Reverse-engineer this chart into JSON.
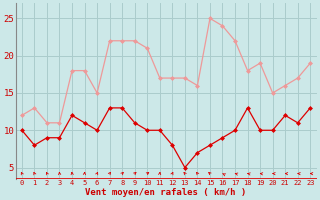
{
  "x": [
    0,
    1,
    2,
    3,
    4,
    5,
    6,
    7,
    8,
    9,
    10,
    11,
    12,
    13,
    14,
    15,
    16,
    17,
    18,
    19,
    20,
    21,
    22,
    23
  ],
  "wind_avg": [
    10,
    8,
    9,
    9,
    12,
    11,
    10,
    13,
    13,
    11,
    10,
    10,
    8,
    5,
    7,
    8,
    9,
    10,
    13,
    10,
    10,
    12,
    11,
    13
  ],
  "wind_gust": [
    12,
    13,
    11,
    11,
    18,
    18,
    15,
    22,
    22,
    22,
    21,
    17,
    17,
    17,
    16,
    25,
    24,
    22,
    18,
    19,
    15,
    16,
    17,
    19
  ],
  "bg_color": "#cce8e8",
  "grid_color": "#aacccc",
  "avg_color": "#dd0000",
  "gust_color": "#ee9999",
  "xlabel": "Vent moyen/en rafales ( km/h )",
  "xlabel_color": "#cc0000",
  "tick_color": "#cc0000",
  "ylim": [
    3.5,
    27
  ],
  "yticks": [
    5,
    10,
    15,
    20,
    25
  ],
  "arrow_angles_deg": [
    195,
    195,
    195,
    185,
    185,
    175,
    165,
    155,
    150,
    145,
    140,
    175,
    165,
    205,
    205,
    215,
    230,
    250,
    255,
    260,
    265,
    265,
    265,
    265
  ]
}
